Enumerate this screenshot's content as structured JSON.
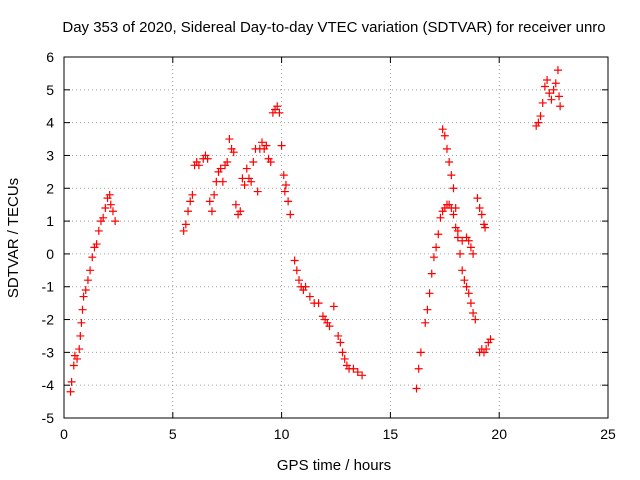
{
  "chart_data": {
    "type": "scatter",
    "title": "Day 353 of 2020, Sidereal Day-to-day VTEC variation (SDTVAR) for receiver unro",
    "xlabel": "GPS time / hours",
    "ylabel": "SDTVAR / TECUs",
    "xlim": [
      0,
      25
    ],
    "ylim": [
      -5,
      6
    ],
    "xticks": [
      0,
      5,
      10,
      15,
      20,
      25
    ],
    "yticks": [
      -5,
      -4,
      -3,
      -2,
      -1,
      0,
      1,
      2,
      3,
      4,
      5,
      6
    ],
    "grid": true,
    "marker": "+",
    "color": "#ff0000",
    "series": [
      {
        "name": "SDTVAR",
        "points": [
          [
            0.3,
            -4.2
          ],
          [
            0.35,
            -3.9
          ],
          [
            0.45,
            -3.4
          ],
          [
            0.5,
            -3.1
          ],
          [
            0.6,
            -3.2
          ],
          [
            0.7,
            -2.9
          ],
          [
            0.75,
            -2.5
          ],
          [
            0.8,
            -2.1
          ],
          [
            0.85,
            -1.7
          ],
          [
            0.9,
            -1.3
          ],
          [
            1.0,
            -1.1
          ],
          [
            1.1,
            -0.8
          ],
          [
            1.2,
            -0.5
          ],
          [
            1.3,
            -0.1
          ],
          [
            1.4,
            0.2
          ],
          [
            1.5,
            0.3
          ],
          [
            1.6,
            0.7
          ],
          [
            1.7,
            1.0
          ],
          [
            1.8,
            1.1
          ],
          [
            1.9,
            1.4
          ],
          [
            2.0,
            1.7
          ],
          [
            2.1,
            1.8
          ],
          [
            2.15,
            1.5
          ],
          [
            2.25,
            1.3
          ],
          [
            2.35,
            1.0
          ],
          [
            5.5,
            0.7
          ],
          [
            5.6,
            0.9
          ],
          [
            5.7,
            1.3
          ],
          [
            5.8,
            1.6
          ],
          [
            5.9,
            1.8
          ],
          [
            6.0,
            2.7
          ],
          [
            6.1,
            2.8
          ],
          [
            6.2,
            2.7
          ],
          [
            6.4,
            2.9
          ],
          [
            6.5,
            3.0
          ],
          [
            6.6,
            2.9
          ],
          [
            6.7,
            1.6
          ],
          [
            6.8,
            1.3
          ],
          [
            6.9,
            1.8
          ],
          [
            7.0,
            2.2
          ],
          [
            7.1,
            2.5
          ],
          [
            7.2,
            2.6
          ],
          [
            7.3,
            2.2
          ],
          [
            7.4,
            2.7
          ],
          [
            7.5,
            2.8
          ],
          [
            7.6,
            3.5
          ],
          [
            7.7,
            3.2
          ],
          [
            7.8,
            3.1
          ],
          [
            7.9,
            1.5
          ],
          [
            8.0,
            1.2
          ],
          [
            8.1,
            1.3
          ],
          [
            8.2,
            2.3
          ],
          [
            8.3,
            2.1
          ],
          [
            8.4,
            2.6
          ],
          [
            8.5,
            2.3
          ],
          [
            8.6,
            2.2
          ],
          [
            8.7,
            2.8
          ],
          [
            8.8,
            3.2
          ],
          [
            8.9,
            1.9
          ],
          [
            9.0,
            3.2
          ],
          [
            9.1,
            3.4
          ],
          [
            9.2,
            3.2
          ],
          [
            9.3,
            3.3
          ],
          [
            9.4,
            2.9
          ],
          [
            9.5,
            2.8
          ],
          [
            9.6,
            4.3
          ],
          [
            9.7,
            4.4
          ],
          [
            9.8,
            4.5
          ],
          [
            9.9,
            4.3
          ],
          [
            10.0,
            3.3
          ],
          [
            10.1,
            2.4
          ],
          [
            10.15,
            1.9
          ],
          [
            10.2,
            2.1
          ],
          [
            10.3,
            1.6
          ],
          [
            10.4,
            1.2
          ],
          [
            10.6,
            -0.2
          ],
          [
            10.7,
            -0.5
          ],
          [
            10.8,
            -0.8
          ],
          [
            10.9,
            -1.0
          ],
          [
            11.0,
            -1.1
          ],
          [
            11.1,
            -1.0
          ],
          [
            11.3,
            -1.3
          ],
          [
            11.5,
            -1.5
          ],
          [
            11.7,
            -1.5
          ],
          [
            11.9,
            -1.9
          ],
          [
            12.0,
            -2.0
          ],
          [
            12.1,
            -2.1
          ],
          [
            12.2,
            -2.2
          ],
          [
            12.4,
            -1.6
          ],
          [
            12.6,
            -2.5
          ],
          [
            12.7,
            -2.7
          ],
          [
            12.8,
            -3.0
          ],
          [
            12.9,
            -3.2
          ],
          [
            13.0,
            -3.4
          ],
          [
            13.1,
            -3.5
          ],
          [
            13.3,
            -3.5
          ],
          [
            13.5,
            -3.6
          ],
          [
            13.7,
            -3.7
          ],
          [
            16.2,
            -4.1
          ],
          [
            16.3,
            -3.5
          ],
          [
            16.4,
            -3.0
          ],
          [
            16.6,
            -2.1
          ],
          [
            16.7,
            -1.7
          ],
          [
            16.8,
            -1.2
          ],
          [
            16.9,
            -0.6
          ],
          [
            17.0,
            -0.1
          ],
          [
            17.1,
            0.2
          ],
          [
            17.2,
            0.6
          ],
          [
            17.3,
            1.1
          ],
          [
            17.4,
            1.3
          ],
          [
            17.5,
            1.4
          ],
          [
            17.6,
            1.5
          ],
          [
            17.7,
            1.5
          ],
          [
            17.8,
            1.4
          ],
          [
            17.9,
            1.2
          ],
          [
            18.0,
            0.8
          ],
          [
            18.1,
            0.5
          ],
          [
            18.3,
            0.4
          ],
          [
            18.5,
            0.5
          ],
          [
            18.6,
            0.4
          ],
          [
            18.7,
            0.2
          ],
          [
            18.8,
            0.0
          ],
          [
            17.4,
            3.8
          ],
          [
            17.5,
            3.6
          ],
          [
            17.6,
            3.2
          ],
          [
            17.7,
            2.8
          ],
          [
            17.8,
            2.4
          ],
          [
            17.9,
            2.0
          ],
          [
            18.0,
            1.4
          ],
          [
            18.1,
            0.7
          ],
          [
            18.2,
            0.0
          ],
          [
            18.3,
            -0.5
          ],
          [
            18.4,
            -0.8
          ],
          [
            18.5,
            -1.0
          ],
          [
            18.6,
            -1.2
          ],
          [
            18.7,
            -1.5
          ],
          [
            18.8,
            -1.8
          ],
          [
            18.9,
            -2.0
          ],
          [
            19.0,
            1.7
          ],
          [
            19.1,
            1.4
          ],
          [
            19.2,
            1.2
          ],
          [
            19.3,
            0.9
          ],
          [
            19.35,
            0.8
          ],
          [
            19.1,
            -3.0
          ],
          [
            19.2,
            -2.9
          ],
          [
            19.3,
            -3.0
          ],
          [
            19.4,
            -2.9
          ],
          [
            19.5,
            -2.7
          ],
          [
            19.6,
            -2.6
          ],
          [
            21.7,
            3.9
          ],
          [
            21.8,
            4.0
          ],
          [
            21.9,
            4.2
          ],
          [
            22.0,
            4.6
          ],
          [
            22.1,
            5.1
          ],
          [
            22.2,
            5.3
          ],
          [
            22.3,
            4.9
          ],
          [
            22.4,
            4.7
          ],
          [
            22.5,
            5.0
          ],
          [
            22.6,
            5.2
          ],
          [
            22.7,
            5.6
          ],
          [
            22.75,
            4.8
          ],
          [
            22.8,
            4.5
          ]
        ]
      }
    ]
  }
}
